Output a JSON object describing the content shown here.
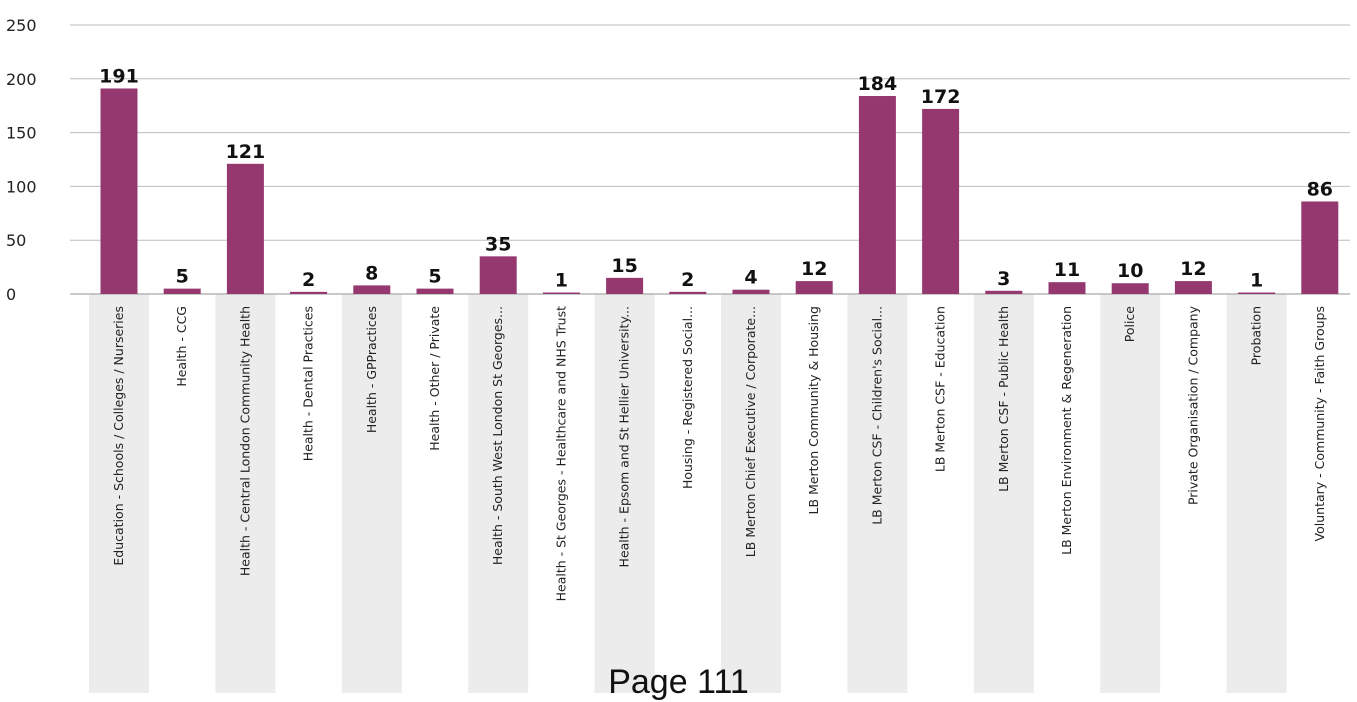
{
  "colors": {
    "bar": "#963870",
    "band": "#ececec",
    "grid": "#bdbdbd",
    "axis": "#a8a8a8"
  },
  "footer_text": "Page 111",
  "chart_data": {
    "type": "bar",
    "title": "",
    "xlabel": "",
    "ylabel": "",
    "ylim": [
      0,
      250
    ],
    "yticks": [
      0,
      50,
      100,
      150,
      200,
      250
    ],
    "grid": true,
    "legend": "none",
    "categories": [
      "Education - Schools / Colleges / Nurseries",
      "Health - CCG",
      "Health - Central London Community Health",
      "Health - Dental Practices",
      "Health - GPPractices",
      "Health - Other / Private",
      "Health - South West London St Georges...",
      "Health - St Georges - Healthcare and NHS Trust",
      "Health - Epsom and St Hellier University...",
      "Housing - Registered Social...",
      "LB Merton Chief Executive / Corporate...",
      "LB Merton Community & Housing",
      "LB Merton CSF - Children's Social...",
      "LB Merton CSF - Education",
      "LB Merton CSF - Public Health",
      "LB Merton Environment & Regeneration",
      "Police",
      "Private Organisation / Company",
      "Probation",
      "Voluntary - Community - Faith Groups"
    ],
    "values": [
      191,
      5,
      121,
      2,
      8,
      5,
      35,
      1,
      15,
      2,
      4,
      12,
      184,
      172,
      3,
      11,
      10,
      12,
      1,
      86
    ]
  }
}
